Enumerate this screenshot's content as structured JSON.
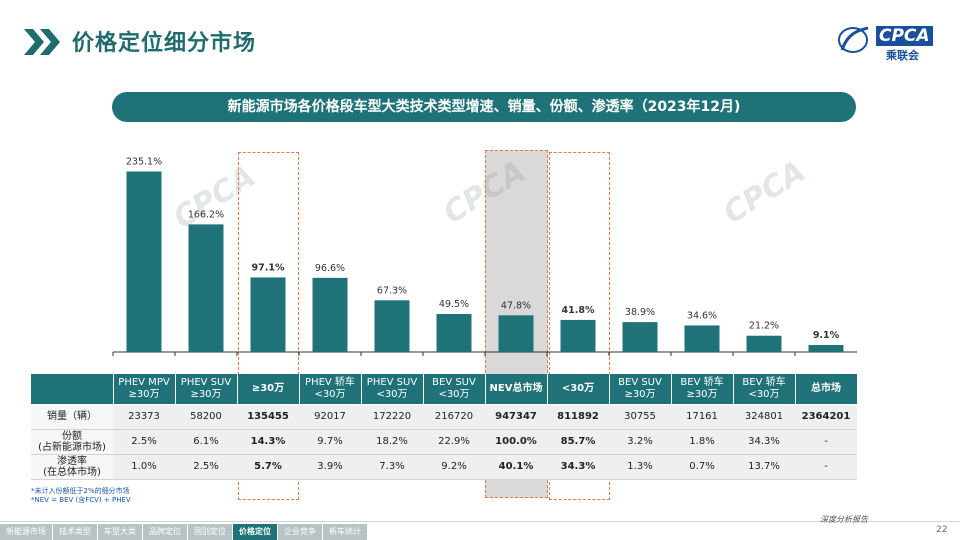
{
  "header": {
    "title": "价格定位细分市场",
    "logo_text": "CPCA",
    "logo_sub": "乘联会"
  },
  "subtitle": "新能源市场各价格段车型大类技术类型增速、销量、份额、渗透率（2023年12月)",
  "chart_data": {
    "type": "bar",
    "categories": [
      "PHEV MPV ≥30万",
      "PHEV SUV ≥30万",
      "≥30万",
      "PHEV 轿车 <30万",
      "PHEV SUV <30万",
      "BEV SUV <30万",
      "NEV总市场",
      "<30万",
      "BEV SUV ≥30万",
      "BEV 轿车 ≥30万",
      "BEV 轿车 <30万",
      "总市场"
    ],
    "values": [
      235.1,
      166.2,
      97.1,
      96.6,
      67.3,
      49.5,
      47.8,
      41.8,
      38.9,
      34.6,
      21.2,
      9.1
    ],
    "value_labels": [
      "235.1%",
      "166.2%",
      "97.1%",
      "96.6%",
      "67.3%",
      "49.5%",
      "47.8%",
      "41.8%",
      "38.9%",
      "34.6%",
      "21.2%",
      "9.1%"
    ],
    "bold_labels": [
      false,
      false,
      true,
      false,
      false,
      false,
      false,
      true,
      false,
      false,
      false,
      true
    ],
    "bar_color": "#1f7378",
    "ylim": [
      0,
      280
    ]
  },
  "highlight_color": "#e07a4a",
  "table": {
    "headers": [
      [
        "PHEV MPV",
        "≥30万"
      ],
      [
        "PHEV SUV",
        "≥30万"
      ],
      [
        "≥30万"
      ],
      [
        "PHEV 轿车",
        "<30万"
      ],
      [
        "PHEV SUV",
        "<30万"
      ],
      [
        "BEV SUV",
        "<30万"
      ],
      [
        "NEV总市场"
      ],
      [
        "<30万"
      ],
      [
        "BEV SUV",
        "≥30万"
      ],
      [
        "BEV 轿车",
        "≥30万"
      ],
      [
        "BEV 轿车",
        "<30万"
      ],
      [
        "总市场"
      ]
    ],
    "rows": [
      {
        "label": [
          "销量（辆）"
        ],
        "cells": [
          "23373",
          "58200",
          "135455",
          "92017",
          "172220",
          "216720",
          "947347",
          "811892",
          "30755",
          "17161",
          "324801",
          "2364201"
        ]
      },
      {
        "label": [
          "份额",
          "(占新能源市场)"
        ],
        "cells": [
          "2.5%",
          "6.1%",
          "14.3%",
          "9.7%",
          "18.2%",
          "22.9%",
          "100.0%",
          "85.7%",
          "3.2%",
          "1.8%",
          "34.3%",
          "-"
        ]
      },
      {
        "label": [
          "渗透率",
          "(在总体市场)"
        ],
        "cells": [
          "1.0%",
          "2.5%",
          "5.7%",
          "3.9%",
          "7.3%",
          "9.2%",
          "40.1%",
          "34.3%",
          "1.3%",
          "0.7%",
          "13.7%",
          "-"
        ]
      }
    ]
  },
  "notes": [
    "*未计入份额低于2%的细分市场",
    "*NEV = BEV (含FCV) + PHEV"
  ],
  "nav": [
    "新能源市场",
    "技术类型",
    "车型大类",
    "品牌定位",
    "国别定位",
    "价格定位",
    "企业竞争",
    "新车统计"
  ],
  "nav_active": 5,
  "report_tag": "深度分析报告",
  "page_number": "22"
}
